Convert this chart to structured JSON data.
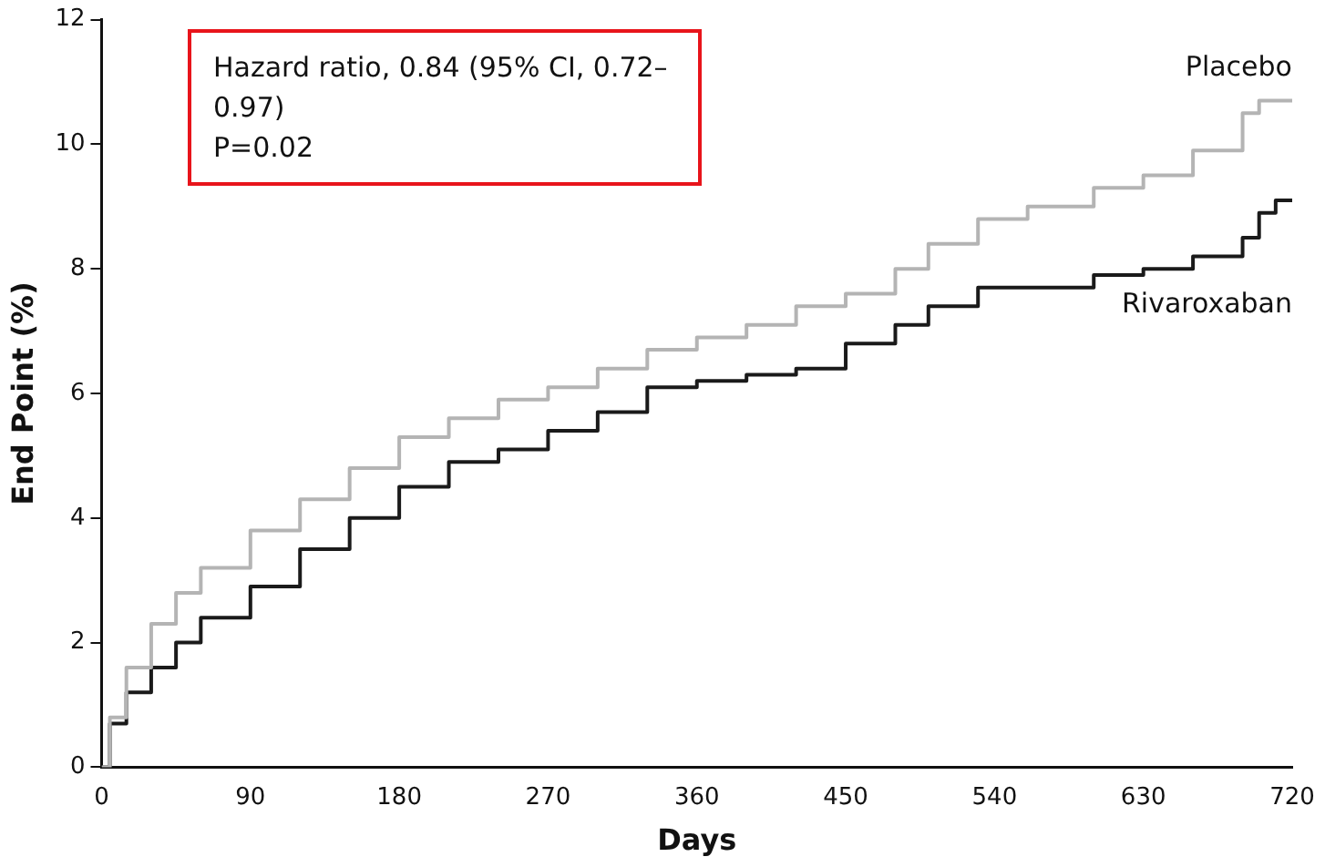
{
  "chart_data": {
    "type": "step",
    "xlabel": "Days",
    "ylabel": "End Point (%)",
    "annotations": [
      "Hazard ratio, 0.84 (95% CI, 0.72–0.97)",
      "P=0.02"
    ],
    "xlim": [
      0,
      720
    ],
    "xticks": [
      0,
      90,
      180,
      270,
      360,
      450,
      540,
      630,
      720
    ],
    "ylim": [
      0,
      12
    ],
    "yticks": [
      0,
      2,
      4,
      6,
      8,
      10,
      12
    ],
    "grid": false,
    "legend": false,
    "x": [
      0,
      5,
      15,
      30,
      45,
      60,
      90,
      120,
      150,
      180,
      210,
      240,
      270,
      300,
      330,
      360,
      390,
      420,
      450,
      480,
      500,
      530,
      560,
      600,
      630,
      660,
      690,
      700,
      710,
      720
    ],
    "series": [
      {
        "name": "Placebo",
        "color": "#b4b4b4",
        "values": [
          0,
          0.8,
          1.6,
          2.3,
          2.8,
          3.2,
          3.8,
          4.3,
          4.8,
          5.3,
          5.6,
          5.9,
          6.1,
          6.4,
          6.7,
          6.9,
          7.1,
          7.4,
          7.6,
          8.0,
          8.4,
          8.8,
          9.0,
          9.3,
          9.5,
          9.9,
          10.5,
          10.7,
          10.7,
          10.7
        ]
      },
      {
        "name": "Rivaroxaban",
        "color": "#1a1a1a",
        "values": [
          0,
          0.7,
          1.2,
          1.6,
          2.0,
          2.4,
          2.9,
          3.5,
          4.0,
          4.5,
          4.9,
          5.1,
          5.4,
          5.7,
          6.1,
          6.2,
          6.3,
          6.4,
          6.8,
          7.1,
          7.4,
          7.7,
          7.7,
          7.9,
          8.0,
          8.2,
          8.5,
          8.9,
          9.1,
          9.1
        ]
      }
    ]
  }
}
